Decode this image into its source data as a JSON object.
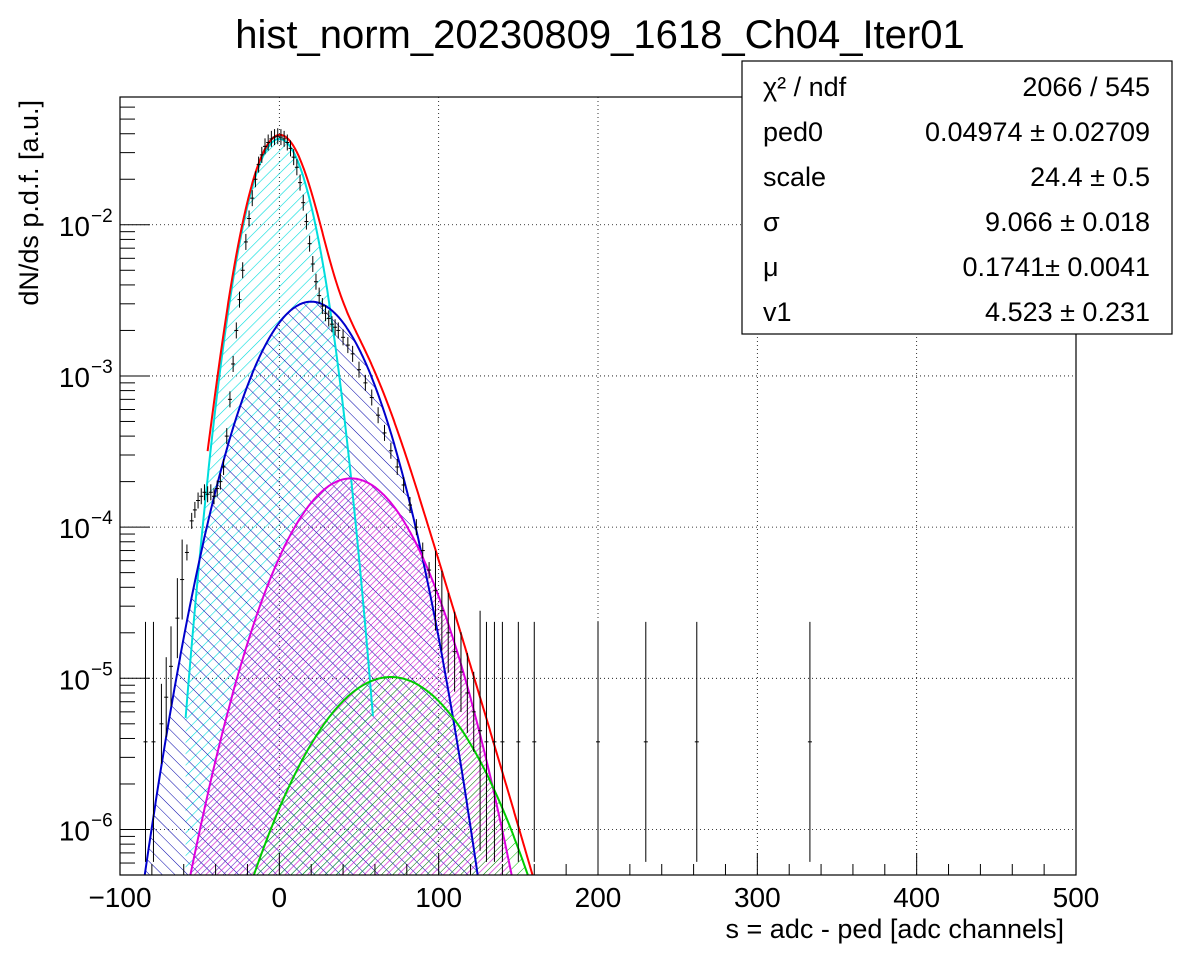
{
  "chart_data": {
    "type": "line",
    "title": "hist_norm_20230809_1618_Ch04_Iter01",
    "xlabel": "s = adc - ped [adc channels]",
    "ylabel": "dN/ds p.d.f. [a.u.]",
    "xlim": [
      -100,
      500
    ],
    "ylim": [
      5e-07,
      0.07
    ],
    "ylog": true,
    "grid": true,
    "x_ticks": [
      -100,
      0,
      100,
      200,
      300,
      400,
      500
    ],
    "y_ticks": [
      {
        "value": 1e-06,
        "base": "10",
        "exp": "−6"
      },
      {
        "value": 1e-05,
        "base": "10",
        "exp": "−5"
      },
      {
        "value": 0.0001,
        "base": "10",
        "exp": "−4"
      },
      {
        "value": 0.001,
        "base": "10",
        "exp": "−3"
      },
      {
        "value": 0.01,
        "base": "10",
        "exp": "−2"
      }
    ],
    "stats_box": {
      "position": "top-right",
      "rows": [
        {
          "label": "χ² / ndf",
          "value": "2066 / 545"
        },
        {
          "label": "ped0",
          "value": "0.04974 ± 0.02709"
        },
        {
          "label": "scale",
          "value": "24.4 ± 0.5"
        },
        {
          "label": "σ",
          "value": "9.066 ± 0.018"
        },
        {
          "label": "μ",
          "value": "0.1741± 0.0041"
        },
        {
          "label": "v1",
          "value": "4.523 ± 0.231"
        }
      ]
    },
    "series": [
      {
        "kind": "gauss",
        "color": "#00dddd",
        "hatch": "cyan",
        "mu": 0,
        "peak": 0.037,
        "sigma": 14
      },
      {
        "kind": "gauss",
        "color": "#0000cc",
        "hatch": "blue",
        "mu": 20,
        "peak": 0.0031,
        "sigma": 25
      },
      {
        "kind": "gauss",
        "color": "#dd00dd",
        "hatch": "magenta",
        "mu": 45,
        "peak": 0.00021,
        "sigma": 29
      },
      {
        "kind": "gauss",
        "color": "#00cc00",
        "hatch": "green",
        "mu": 70,
        "peak": 1.02e-05,
        "sigma": 35
      },
      {
        "kind": "total",
        "color": "#ff0000"
      }
    ],
    "data_points": [
      [
        -84,
        3.8e-06
      ],
      [
        -79,
        3.8e-06
      ],
      [
        -74,
        5e-06
      ],
      [
        -71,
        7.5e-06
      ],
      [
        -68,
        1.2e-05
      ],
      [
        -64,
        2.5e-05
      ],
      [
        -61,
        4.5e-05
      ],
      [
        -58,
        6.8e-05
      ],
      [
        -55,
        0.00011
      ],
      [
        -53,
        0.00013
      ],
      [
        -51,
        0.00015
      ],
      [
        -49,
        0.00016
      ],
      [
        -47,
        0.00017
      ],
      [
        -45,
        0.000165
      ],
      [
        -43,
        0.00017
      ],
      [
        -41,
        0.00016
      ],
      [
        -39,
        0.00018
      ],
      [
        -37,
        0.0002
      ],
      [
        -35,
        0.00025
      ],
      [
        -33,
        0.0004
      ],
      [
        -31,
        0.0007
      ],
      [
        -29,
        0.0012
      ],
      [
        -27,
        0.002
      ],
      [
        -25,
        0.0032
      ],
      [
        -23,
        0.005
      ],
      [
        -21,
        0.0077
      ],
      [
        -19,
        0.011
      ],
      [
        -17,
        0.015
      ],
      [
        -15,
        0.02
      ],
      [
        -13,
        0.025
      ],
      [
        -11,
        0.029
      ],
      [
        -9,
        0.033
      ],
      [
        -7,
        0.035
      ],
      [
        -5,
        0.037
      ],
      [
        -3,
        0.038
      ],
      [
        -1,
        0.0385
      ],
      [
        1,
        0.038
      ],
      [
        3,
        0.037
      ],
      [
        5,
        0.035
      ],
      [
        7,
        0.032
      ],
      [
        9,
        0.028
      ],
      [
        11,
        0.024
      ],
      [
        13,
        0.019
      ],
      [
        15,
        0.014
      ],
      [
        17,
        0.0105
      ],
      [
        19,
        0.0075
      ],
      [
        21,
        0.0055
      ],
      [
        23,
        0.0042
      ],
      [
        25,
        0.0034
      ],
      [
        27,
        0.0029
      ],
      [
        29,
        0.0026
      ],
      [
        31,
        0.0024
      ],
      [
        33,
        0.0022
      ],
      [
        35,
        0.0021
      ],
      [
        37,
        0.002
      ],
      [
        40,
        0.0018
      ],
      [
        43,
        0.0016
      ],
      [
        46,
        0.0014
      ],
      [
        50,
        0.0011
      ],
      [
        54,
        0.0009
      ],
      [
        58,
        0.00072
      ],
      [
        62,
        0.00055
      ],
      [
        66,
        0.00042
      ],
      [
        70,
        0.00032
      ],
      [
        74,
        0.00025
      ],
      [
        78,
        0.00019
      ],
      [
        82,
        0.00014
      ],
      [
        86,
        0.0001
      ],
      [
        90,
        7e-05
      ],
      [
        94,
        5.2e-05
      ],
      [
        98,
        3.8e-05
      ],
      [
        102,
        2.8e-05
      ],
      [
        106,
        2e-05
      ],
      [
        110,
        1.5e-05
      ],
      [
        114,
        1.1e-05
      ],
      [
        118,
        8e-06
      ],
      [
        122,
        6e-06
      ],
      [
        126,
        4.5e-06
      ],
      [
        130,
        3.8e-06
      ],
      [
        135,
        3.8e-06
      ],
      [
        140,
        3.8e-06
      ],
      [
        150,
        3.8e-06
      ],
      [
        160,
        3.8e-06
      ],
      [
        200,
        3.8e-06
      ],
      [
        230,
        3.8e-06
      ],
      [
        262,
        3.8e-06
      ],
      [
        333,
        3.8e-06
      ]
    ]
  }
}
